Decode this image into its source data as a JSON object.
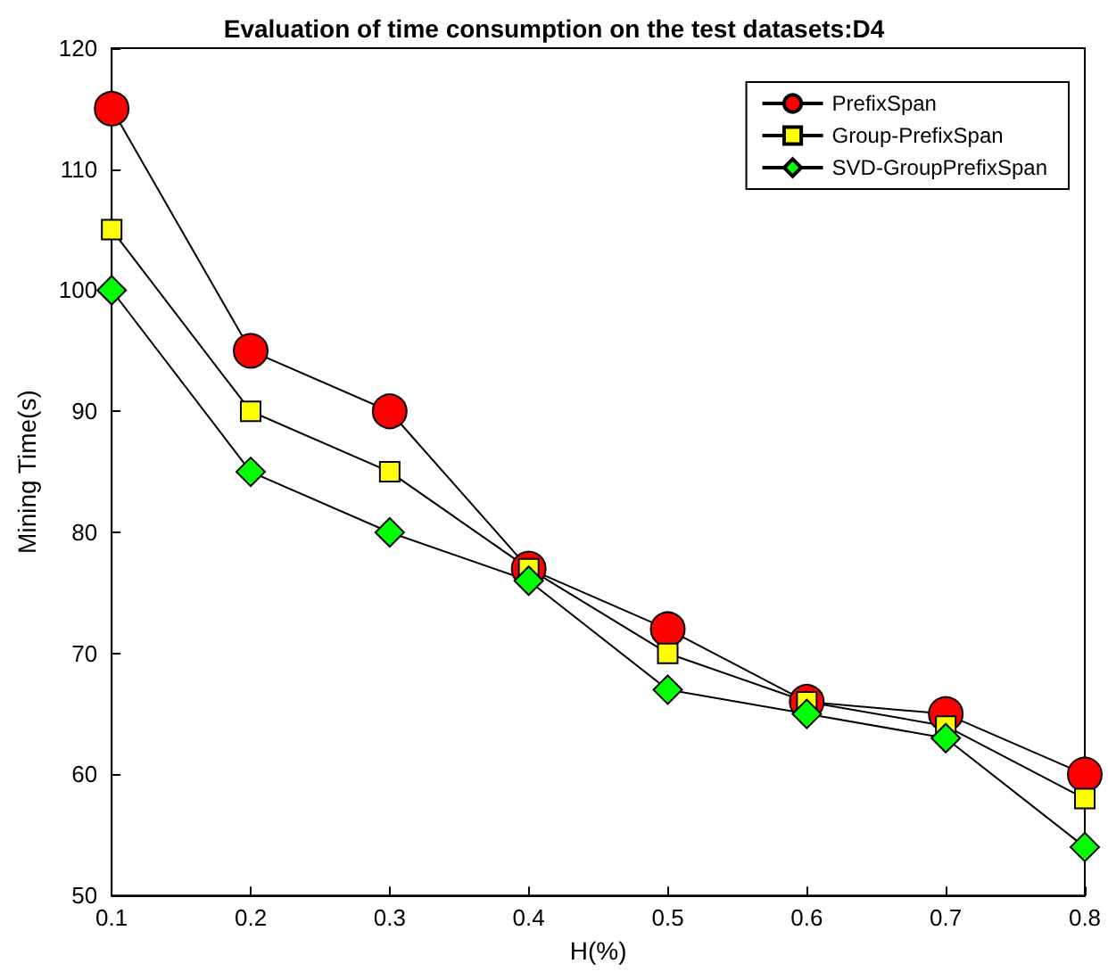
{
  "chart_data": {
    "type": "line",
    "title": "Evaluation of time consumption on the test datasets:D4",
    "xlabel": "H(%)",
    "ylabel": "Mining Time(s)",
    "x": [
      0.1,
      0.2,
      0.3,
      0.4,
      0.5,
      0.6,
      0.7,
      0.8
    ],
    "series": [
      {
        "name": "PrefixSpan",
        "color": "#ff0000",
        "marker": "circle",
        "values": [
          115,
          95,
          90,
          77,
          72,
          66,
          65,
          60
        ]
      },
      {
        "name": "Group-PrefixSpan",
        "color": "#ffff00",
        "marker": "square",
        "values": [
          105,
          90,
          85,
          77,
          70,
          66,
          64,
          58
        ]
      },
      {
        "name": "SVD-GroupPrefixSpan",
        "color": "#00ff00",
        "marker": "diamond",
        "values": [
          100,
          85,
          80,
          76,
          67,
          65,
          63,
          54
        ]
      }
    ],
    "xlim": [
      0.1,
      0.8
    ],
    "xticks": [
      0.1,
      0.2,
      0.3,
      0.4,
      0.5,
      0.6,
      0.7,
      0.8
    ],
    "ylim": [
      50,
      120
    ],
    "yticks": [
      50,
      60,
      70,
      80,
      90,
      100,
      110,
      120
    ],
    "grid": false,
    "legend": "top right",
    "line_style": "solid"
  }
}
